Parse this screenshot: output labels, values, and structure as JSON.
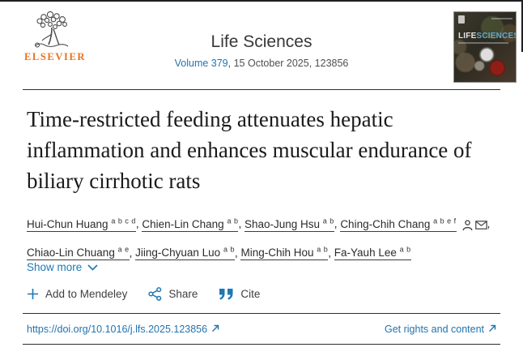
{
  "publisher": {
    "name": "ELSEVIER"
  },
  "journal": {
    "name": "Life Sciences",
    "volume": "Volume 379",
    "issue_info": ", 15 October 2025, 123856"
  },
  "cover": {
    "line1": "LIFE",
    "line2": "SCIENCES"
  },
  "article": {
    "title": "Time-restricted feeding attenuates hepatic inflammation and enhances muscular endurance of biliary cirrhotic rats"
  },
  "authors": [
    {
      "name": "Hui-Chun Huang",
      "sup": "a b c d",
      "corresponding": false
    },
    {
      "name": "Chien-Lin Chang",
      "sup": "a b",
      "corresponding": false
    },
    {
      "name": "Shao-Jung Hsu",
      "sup": "a b",
      "corresponding": false
    },
    {
      "name": "Ching-Chih Chang",
      "sup": "a b e f",
      "corresponding": true
    },
    {
      "name": "Chiao-Lin Chuang",
      "sup": "a e",
      "corresponding": false
    },
    {
      "name": "Jiing-Chyuan Luo",
      "sup": "a b",
      "corresponding": false
    },
    {
      "name": "Ming-Chih Hou",
      "sup": "a b",
      "corresponding": false
    },
    {
      "name": "Fa-Yauh Lee",
      "sup": "a b",
      "corresponding": false
    }
  ],
  "actions": {
    "show_more": "Show more",
    "mendeley": "Add to Mendeley",
    "share": "Share",
    "cite": "Cite"
  },
  "footer": {
    "doi": "https://doi.org/10.1016/j.lfs.2025.123856",
    "rights": "Get rights and content"
  },
  "colors": {
    "accent": "#1d78b5",
    "elsevier_orange": "#e9711c"
  }
}
